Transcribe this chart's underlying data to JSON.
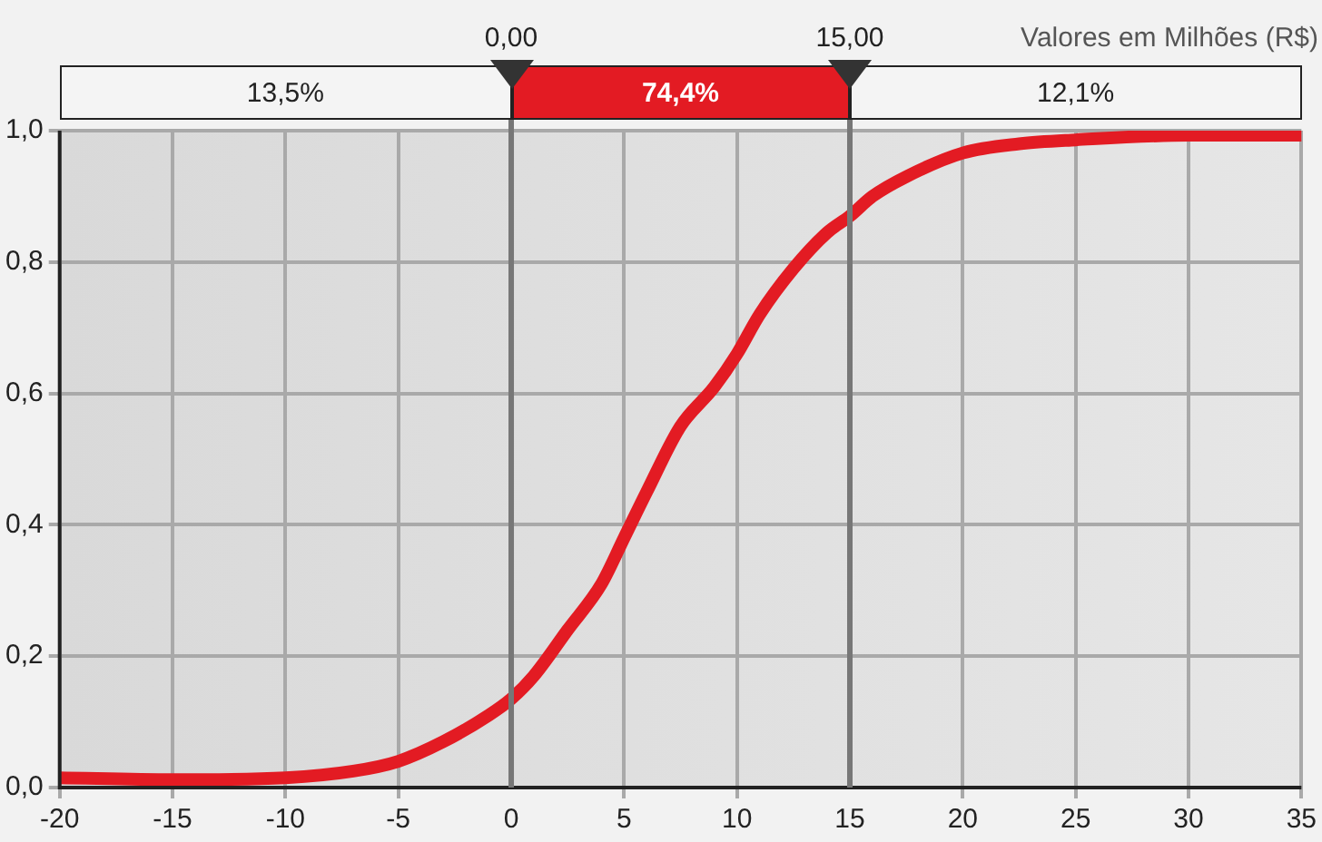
{
  "chart_data": {
    "type": "line",
    "x": [
      -20,
      -15,
      -10,
      -7,
      -5,
      -3,
      -1,
      0,
      1,
      2.5,
      4,
      5,
      6,
      7.5,
      9,
      10,
      11,
      12.5,
      14,
      15,
      16,
      17.5,
      20,
      22.5,
      25,
      30,
      35
    ],
    "series": [
      {
        "color": "#e31b23",
        "values": [
          0.015,
          0.012,
          0.015,
          0.025,
          0.04,
          0.07,
          0.11,
          0.135,
          0.17,
          0.24,
          0.31,
          0.38,
          0.45,
          0.55,
          0.61,
          0.66,
          0.72,
          0.79,
          0.845,
          0.87,
          0.9,
          0.93,
          0.966,
          0.98,
          0.986,
          0.993,
          0.993
        ]
      }
    ],
    "xlim": [
      -20,
      35
    ],
    "xticks": [
      -20,
      -15,
      -10,
      -5,
      0,
      5,
      10,
      15,
      20,
      25,
      30,
      35
    ],
    "ylim": [
      0,
      1
    ],
    "yticks": [
      {
        "value": 0,
        "label": "0,0"
      },
      {
        "value": 0.2,
        "label": "0,2"
      },
      {
        "value": 0.4,
        "label": "0,4"
      },
      {
        "value": 0.6,
        "label": "0,6"
      },
      {
        "value": 0.8,
        "label": "0,8"
      },
      {
        "value": 1,
        "label": "1,0"
      }
    ],
    "grid": true,
    "marker": "none",
    "line_style": "solid",
    "ref_lines": [
      {
        "axis": "x",
        "value": 0,
        "label": "0,00",
        "color": "#777777"
      },
      {
        "axis": "x",
        "value": 15,
        "label": "15,00",
        "color": "#777777"
      }
    ],
    "annotations": [
      "Valores em Milhões (R$)",
      "13,5%",
      "74,4%",
      "12,1%"
    ]
  }
}
